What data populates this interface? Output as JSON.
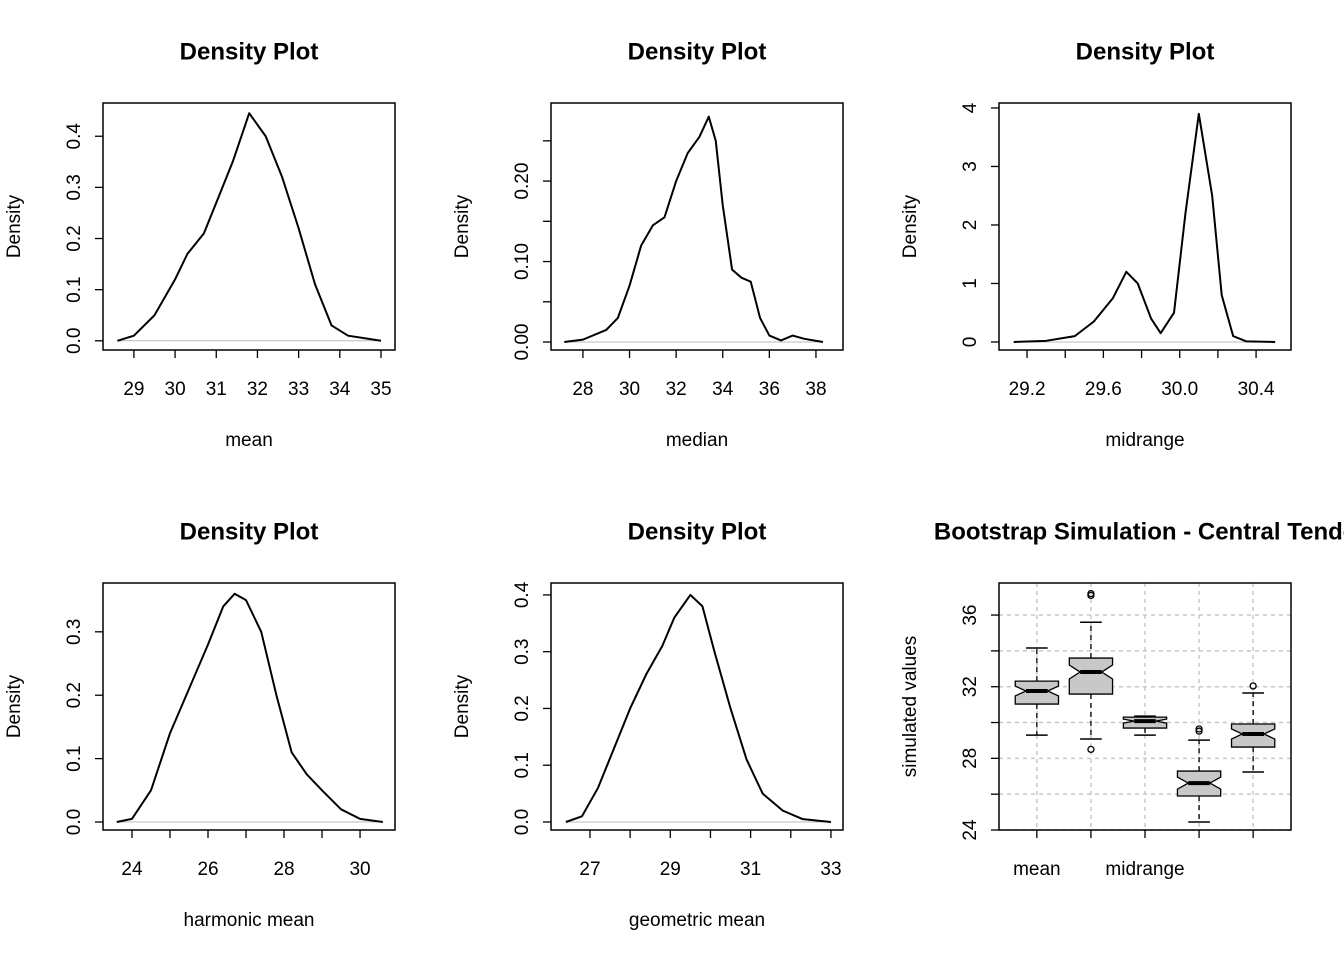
{
  "chart_data": [
    {
      "type": "line",
      "title": "Density Plot",
      "xlabel": "mean",
      "ylabel": "Density",
      "color": "#000000",
      "x": [
        28.6,
        29,
        29.5,
        30,
        30.3,
        30.7,
        31,
        31.4,
        31.8,
        32.2,
        32.6,
        33,
        33.4,
        33.8,
        34.2,
        35
      ],
      "y": [
        0,
        0.01,
        0.05,
        0.12,
        0.17,
        0.21,
        0.27,
        0.35,
        0.445,
        0.4,
        0.32,
        0.22,
        0.11,
        0.03,
        0.01,
        0
      ],
      "xlim": [
        28.25,
        35.34
      ],
      "ylim": [
        -0.018,
        0.465
      ],
      "xticks": [
        29,
        30,
        31,
        32,
        33,
        34,
        35
      ],
      "yticks": [
        {
          "value": 0,
          "label": "0.0"
        },
        0.1,
        0.2,
        0.3,
        0.4
      ]
    },
    {
      "type": "line",
      "title": "Density Plot",
      "xlabel": "median",
      "ylabel": "Density",
      "color": "#000000",
      "x": [
        27.2,
        28,
        29,
        29.5,
        30,
        30.5,
        31,
        31.5,
        32,
        32.5,
        33,
        33.4,
        33.7,
        34,
        34.4,
        34.8,
        35.2,
        35.6,
        36,
        36.5,
        37,
        37.5,
        38.3
      ],
      "y": [
        0,
        0.003,
        0.015,
        0.03,
        0.07,
        0.12,
        0.145,
        0.155,
        0.2,
        0.235,
        0.255,
        0.28,
        0.25,
        0.17,
        0.09,
        0.08,
        0.075,
        0.03,
        0.008,
        0.002,
        0.008,
        0.004,
        0
      ],
      "xlim": [
        26.63,
        39.16
      ],
      "ylim": [
        -0.0099,
        0.297
      ],
      "xticks": [
        28,
        30,
        32,
        34,
        36,
        38
      ],
      "yticks": [
        {
          "value": 0,
          "label": "0.00"
        },
        {
          "value": 0.05,
          "label": null
        },
        {
          "value": 0.1,
          "label": "0.10"
        },
        {
          "value": 0.15,
          "label": null
        },
        {
          "value": 0.2,
          "label": "0.20"
        },
        {
          "value": 0.25,
          "label": null
        }
      ]
    },
    {
      "type": "line",
      "title": "Density Plot",
      "xlabel": "midrange",
      "ylabel": "Density",
      "color": "#000000",
      "x": [
        29.13,
        29.3,
        29.45,
        29.55,
        29.65,
        29.72,
        29.78,
        29.85,
        29.9,
        29.97,
        30.03,
        30.1,
        30.17,
        30.22,
        30.28,
        30.35,
        30.5
      ],
      "y": [
        0,
        0.02,
        0.1,
        0.35,
        0.75,
        1.2,
        1.0,
        0.4,
        0.15,
        0.5,
        2.2,
        3.9,
        2.5,
        0.8,
        0.1,
        0.01,
        0
      ],
      "xlim": [
        29.053,
        30.583
      ],
      "ylim": [
        -0.137,
        4.085
      ],
      "xticks": [
        29.2,
        {
          "value": 29.4,
          "label": null
        },
        29.6,
        {
          "value": 29.8,
          "label": null
        },
        {
          "value": 30,
          "label": "30.0"
        },
        {
          "value": 30.2,
          "label": null
        },
        30.4
      ],
      "yticks": [
        0,
        1,
        2,
        3,
        4
      ]
    },
    {
      "type": "line",
      "title": "Density Plot",
      "xlabel": "harmonic mean",
      "ylabel": "Density",
      "color": "#000000",
      "x": [
        23.6,
        24,
        24.5,
        25,
        25.5,
        26,
        26.4,
        26.7,
        27,
        27.4,
        27.8,
        28.2,
        28.6,
        29,
        29.5,
        30,
        30.6
      ],
      "y": [
        0,
        0.005,
        0.05,
        0.14,
        0.21,
        0.28,
        0.34,
        0.36,
        0.35,
        0.3,
        0.2,
        0.11,
        0.075,
        0.05,
        0.02,
        0.005,
        0
      ],
      "xlim": [
        23.237,
        30.92
      ],
      "ylim": [
        -0.0126,
        0.377
      ],
      "xticks": [
        24,
        {
          "value": 25,
          "label": null
        },
        26,
        {
          "value": 27,
          "label": null
        },
        28,
        {
          "value": 29,
          "label": null
        },
        30
      ],
      "yticks": [
        {
          "value": 0,
          "label": "0.0"
        },
        0.1,
        0.2,
        0.3
      ]
    },
    {
      "type": "line",
      "title": "Density Plot",
      "xlabel": "geometric mean",
      "ylabel": "Density",
      "color": "#000000",
      "x": [
        26.4,
        26.8,
        27.2,
        27.6,
        28,
        28.4,
        28.8,
        29.1,
        29.5,
        29.8,
        30.1,
        30.5,
        30.9,
        31.3,
        31.8,
        32.3,
        33
      ],
      "y": [
        0,
        0.01,
        0.06,
        0.13,
        0.2,
        0.26,
        0.31,
        0.36,
        0.4,
        0.38,
        0.3,
        0.2,
        0.11,
        0.05,
        0.02,
        0.005,
        0
      ],
      "xlim": [
        26.03,
        33.3
      ],
      "ylim": [
        -0.0141,
        0.421
      ],
      "xticks": [
        27,
        {
          "value": 28,
          "label": null
        },
        29,
        {
          "value": 30,
          "label": null
        },
        31,
        {
          "value": 32,
          "label": null
        },
        33
      ],
      "yticks": [
        {
          "value": 0,
          "label": "0.0"
        },
        0.1,
        0.2,
        0.3,
        0.4
      ]
    },
    {
      "type": "box",
      "title": "Bootstrap Simulation - Central Tende",
      "ylabel": "simulated values",
      "color": "#c8c8c8",
      "grid": true,
      "notch": true,
      "categories": [
        "mean",
        null,
        "midrange",
        null,
        null
      ],
      "boxes": [
        {
          "whislo": 29.3,
          "q1": 31.03,
          "med": 31.76,
          "q3": 32.31,
          "whishi": 34.16,
          "outliers": []
        },
        {
          "whislo": 29.08,
          "q1": 31.59,
          "med": 32.82,
          "q3": 33.6,
          "whishi": 35.6,
          "outliers": [
            37.2,
            37.1,
            28.5
          ]
        },
        {
          "whislo": 29.3,
          "q1": 29.69,
          "med": 30.08,
          "q3": 30.3,
          "whishi": 30.36,
          "outliers": []
        },
        {
          "whislo": 24.45,
          "q1": 25.9,
          "med": 26.62,
          "q3": 27.29,
          "whishi": 29.02,
          "outliers": [
            29.64,
            29.52
          ]
        },
        {
          "whislo": 27.24,
          "q1": 28.63,
          "med": 29.36,
          "q3": 29.92,
          "whishi": 31.65,
          "outliers": [
            32.04
          ]
        }
      ],
      "ylim": [
        24,
        37.79
      ],
      "yticks": [
        24,
        {
          "value": 26,
          "label": null
        },
        28,
        {
          "value": 30,
          "label": null
        },
        32,
        {
          "value": 34,
          "label": null
        },
        36
      ]
    }
  ]
}
